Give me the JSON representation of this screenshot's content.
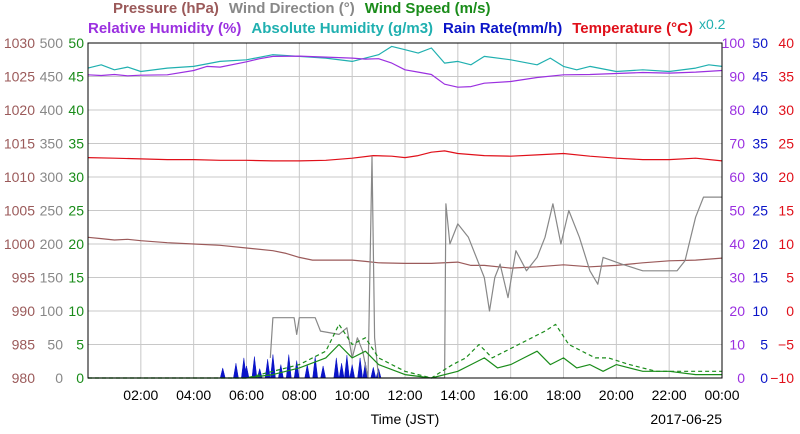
{
  "chart_data": {
    "type": "line",
    "legend_rows": [
      [
        {
          "key": "pressure",
          "text": "Pressure (hPa)",
          "color": "#9b5a5a"
        },
        {
          "key": "wind_dir",
          "text": "Wind Direction (°)",
          "color": "#888888"
        },
        {
          "key": "wind_speed",
          "text": "Wind Speed (m/s)",
          "color": "#1a8c1a"
        }
      ],
      [
        {
          "key": "rel_humidity",
          "text": "Relative Humidity (%)",
          "color": "#9b30e0"
        },
        {
          "key": "abs_humidity",
          "text": "Absolute Humidity (g/m3)",
          "color": "#20b0b0"
        },
        {
          "key": "rain_rate",
          "text": "Rain Rate(mm/h)",
          "color": "#0a14c8"
        },
        {
          "key": "temperature",
          "text": "Temperature (°C)",
          "color": "#e0101a"
        }
      ]
    ],
    "abs_humidity_scale": "x0.2",
    "xlabel": "Time (JST)",
    "date_label": "2017-06-25",
    "x_range_hours": [
      0,
      24
    ],
    "x_ticks": [
      "02:00",
      "04:00",
      "06:00",
      "08:00",
      "10:00",
      "12:00",
      "14:00",
      "16:00",
      "18:00",
      "20:00",
      "22:00",
      "00:00"
    ],
    "axes": {
      "pressure": {
        "min": 980,
        "max": 1030,
        "ticks": [
          "980",
          "985",
          "990",
          "995",
          "1000",
          "1005",
          "1010",
          "1015",
          "1020",
          "1025",
          "1030"
        ],
        "color": "#9b5a5a"
      },
      "wind_dir": {
        "min": 0,
        "max": 500,
        "ticks": [
          "0",
          "50",
          "100",
          "150",
          "200",
          "250",
          "300",
          "350",
          "400",
          "450",
          "500"
        ],
        "color": "#888888"
      },
      "wind_speed": {
        "min": 0,
        "max": 50,
        "ticks": [
          "0",
          "5",
          "10",
          "15",
          "20",
          "25",
          "30",
          "35",
          "40",
          "45",
          "50"
        ],
        "color": "#1a8c1a"
      },
      "rel_humidity": {
        "min": 0,
        "max": 100,
        "ticks": [
          "0",
          "10",
          "20",
          "30",
          "40",
          "50",
          "60",
          "70",
          "80",
          "90",
          "100"
        ],
        "color": "#9b30e0"
      },
      "rain_rate": {
        "min": 0,
        "max": 50,
        "ticks": [
          "0",
          "5",
          "10",
          "15",
          "20",
          "25",
          "30",
          "35",
          "40",
          "45",
          "50"
        ],
        "color": "#0a14c8"
      },
      "temperature": {
        "min": -10,
        "max": 40,
        "ticks": [
          "−10",
          "−5",
          "0",
          "5",
          "10",
          "15",
          "20",
          "25",
          "30",
          "35",
          "40"
        ],
        "color": "#e0101a"
      }
    },
    "grid": true,
    "series": [
      {
        "key": "pressure",
        "axis": "pressure",
        "color": "#9b5a5a",
        "points": [
          [
            0,
            1001
          ],
          [
            0.5,
            1000.8
          ],
          [
            1,
            1000.6
          ],
          [
            1.5,
            1000.7
          ],
          [
            2,
            1000.5
          ],
          [
            3,
            1000.2
          ],
          [
            4,
            1000
          ],
          [
            5,
            999.8
          ],
          [
            6,
            999.4
          ],
          [
            7,
            999
          ],
          [
            7.5,
            998.6
          ],
          [
            8,
            998
          ],
          [
            8.5,
            997.6
          ],
          [
            9,
            997.6
          ],
          [
            10,
            997.6
          ],
          [
            10.5,
            997.4
          ],
          [
            11,
            997.2
          ],
          [
            12,
            997.1
          ],
          [
            13,
            997.1
          ],
          [
            14,
            997.3
          ],
          [
            14.5,
            996.8
          ],
          [
            15,
            996.8
          ],
          [
            16,
            996.4
          ],
          [
            17,
            996.6
          ],
          [
            18,
            996.9
          ],
          [
            19,
            996.6
          ],
          [
            20,
            996.8
          ],
          [
            21,
            997.2
          ],
          [
            22,
            997.5
          ],
          [
            23,
            997.6
          ],
          [
            24,
            997.9
          ]
        ]
      },
      {
        "key": "temperature",
        "axis": "temperature",
        "color": "#e0101a",
        "points": [
          [
            0,
            22.9
          ],
          [
            1,
            22.8
          ],
          [
            2,
            22.7
          ],
          [
            3,
            22.6
          ],
          [
            4,
            22.6
          ],
          [
            5,
            22.5
          ],
          [
            6,
            22.5
          ],
          [
            7,
            22.4
          ],
          [
            8,
            22.4
          ],
          [
            9,
            22.5
          ],
          [
            10,
            22.8
          ],
          [
            10.8,
            23.2
          ],
          [
            11.5,
            23.1
          ],
          [
            12,
            22.9
          ],
          [
            12.5,
            23.2
          ],
          [
            13,
            23.7
          ],
          [
            13.5,
            23.9
          ],
          [
            14,
            23.5
          ],
          [
            15,
            23.2
          ],
          [
            16,
            23.1
          ],
          [
            17,
            23.3
          ],
          [
            18,
            23.5
          ],
          [
            19,
            23.1
          ],
          [
            20,
            22.8
          ],
          [
            21,
            22.6
          ],
          [
            22,
            22.6
          ],
          [
            23,
            22.8
          ],
          [
            24,
            22.4
          ]
        ]
      },
      {
        "key": "abs_humidity",
        "axis": "rel_humidity",
        "color": "#20b0b0",
        "points": [
          [
            0,
            92.5
          ],
          [
            0.5,
            93.5
          ],
          [
            1,
            92
          ],
          [
            1.5,
            92.8
          ],
          [
            2,
            91.5
          ],
          [
            3,
            92.5
          ],
          [
            4,
            93
          ],
          [
            5,
            94.5
          ],
          [
            6,
            95
          ],
          [
            7,
            96.5
          ],
          [
            8,
            96
          ],
          [
            9,
            95.5
          ],
          [
            10,
            94.5
          ],
          [
            11,
            96.5
          ],
          [
            11.5,
            99
          ],
          [
            12,
            98
          ],
          [
            12.5,
            97
          ],
          [
            13,
            98.5
          ],
          [
            13.5,
            94
          ],
          [
            14,
            94.5
          ],
          [
            14.5,
            93.5
          ],
          [
            15,
            96
          ],
          [
            16,
            95
          ],
          [
            17,
            93.5
          ],
          [
            17.5,
            95.5
          ],
          [
            18,
            93
          ],
          [
            18.5,
            92
          ],
          [
            19,
            93
          ],
          [
            20,
            91.5
          ],
          [
            21,
            92
          ],
          [
            22,
            91.5
          ],
          [
            23,
            92.5
          ],
          [
            23.5,
            93.5
          ],
          [
            24,
            93
          ]
        ]
      },
      {
        "key": "rel_humidity",
        "axis": "rel_humidity",
        "color": "#9b30e0",
        "points": [
          [
            0,
            90.5
          ],
          [
            0.5,
            90.3
          ],
          [
            1,
            90.6
          ],
          [
            1.5,
            90.2
          ],
          [
            2,
            90.4
          ],
          [
            3,
            90.5
          ],
          [
            4,
            91.8
          ],
          [
            4.5,
            93
          ],
          [
            5,
            92.8
          ],
          [
            6,
            94.4
          ],
          [
            6.5,
            95.3
          ],
          [
            7,
            96
          ],
          [
            8,
            96.1
          ],
          [
            9,
            95.8
          ],
          [
            10,
            95.5
          ],
          [
            10.5,
            95.2
          ],
          [
            11,
            95.3
          ],
          [
            11.5,
            94
          ],
          [
            12,
            92
          ],
          [
            12.5,
            91.3
          ],
          [
            13,
            90.6
          ],
          [
            13.5,
            87.7
          ],
          [
            14,
            86.8
          ],
          [
            14.5,
            87
          ],
          [
            15,
            88
          ],
          [
            16,
            88.5
          ],
          [
            17,
            89.7
          ],
          [
            18,
            90.5
          ],
          [
            19,
            90.6
          ],
          [
            20,
            90.9
          ],
          [
            21,
            91.2
          ],
          [
            22,
            91
          ],
          [
            23,
            91.3
          ],
          [
            24,
            91.8
          ]
        ]
      },
      {
        "key": "wind_dir",
        "axis": "wind_dir",
        "color": "#888888",
        "points": [
          [
            6.9,
            30
          ],
          [
            7.0,
            90
          ],
          [
            7.8,
            90
          ],
          [
            7.9,
            65
          ],
          [
            8.0,
            90
          ],
          [
            8.6,
            90
          ],
          [
            8.8,
            70
          ],
          [
            9.5,
            65
          ],
          [
            9.8,
            75
          ],
          [
            10.0,
            30
          ],
          [
            10.2,
            60
          ],
          [
            10.4,
            40
          ],
          [
            10.6,
            0
          ],
          [
            10.75,
            330
          ],
          [
            10.85,
            60
          ],
          [
            11.0,
            0
          ],
          [
            11.3,
            0
          ],
          [
            12.0,
            0
          ],
          [
            12.5,
            0
          ],
          [
            13.5,
            0
          ],
          [
            13.55,
            260
          ],
          [
            13.7,
            200
          ],
          [
            14.0,
            230
          ],
          [
            14.4,
            210
          ],
          [
            15.0,
            150
          ],
          [
            15.2,
            100
          ],
          [
            15.4,
            150
          ],
          [
            15.6,
            170
          ],
          [
            15.9,
            120
          ],
          [
            16.2,
            190
          ],
          [
            16.6,
            160
          ],
          [
            17.0,
            180
          ],
          [
            17.3,
            210
          ],
          [
            17.6,
            260
          ],
          [
            17.9,
            200
          ],
          [
            18.2,
            250
          ],
          [
            18.6,
            210
          ],
          [
            19.0,
            160
          ],
          [
            19.3,
            140
          ],
          [
            19.5,
            180
          ],
          [
            20.2,
            170
          ],
          [
            21.0,
            160
          ],
          [
            21.8,
            160
          ],
          [
            22.3,
            160
          ],
          [
            22.6,
            175
          ],
          [
            23.0,
            240
          ],
          [
            23.3,
            270
          ],
          [
            24.0,
            270
          ]
        ]
      },
      {
        "key": "wind_speed",
        "axis": "wind_speed",
        "color": "#1a8c1a",
        "points": [
          [
            0,
            0
          ],
          [
            6,
            0
          ],
          [
            7,
            0.5
          ],
          [
            8,
            1.5
          ],
          [
            9,
            3
          ],
          [
            9.5,
            5
          ],
          [
            10,
            3
          ],
          [
            10.5,
            4
          ],
          [
            11,
            2
          ],
          [
            12,
            0.5
          ],
          [
            13,
            0
          ],
          [
            14,
            1
          ],
          [
            14.5,
            2
          ],
          [
            15,
            3
          ],
          [
            15.5,
            1.5
          ],
          [
            16,
            2
          ],
          [
            16.5,
            3
          ],
          [
            17,
            4
          ],
          [
            17.5,
            2
          ],
          [
            18,
            3
          ],
          [
            18.5,
            1.5
          ],
          [
            19,
            2
          ],
          [
            19.5,
            1
          ],
          [
            20,
            2
          ],
          [
            21,
            1
          ],
          [
            22,
            1
          ],
          [
            23,
            0.5
          ],
          [
            24,
            0.5
          ]
        ]
      },
      {
        "key": "wind_gust",
        "axis": "wind_speed",
        "color": "#1a8c1a",
        "dash": true,
        "points": [
          [
            0,
            0
          ],
          [
            6,
            0
          ],
          [
            7,
            1
          ],
          [
            8,
            2
          ],
          [
            9,
            4
          ],
          [
            9.5,
            8
          ],
          [
            10,
            5
          ],
          [
            10.5,
            6
          ],
          [
            11,
            3
          ],
          [
            12,
            1
          ],
          [
            13,
            0
          ],
          [
            13.8,
            2
          ],
          [
            14.3,
            3
          ],
          [
            14.8,
            5
          ],
          [
            15.3,
            3
          ],
          [
            15.8,
            4
          ],
          [
            16.3,
            5
          ],
          [
            16.8,
            6
          ],
          [
            17.3,
            7
          ],
          [
            17.7,
            8
          ],
          [
            18.2,
            5
          ],
          [
            18.7,
            4
          ],
          [
            19.2,
            3
          ],
          [
            19.7,
            3
          ],
          [
            20.5,
            2
          ],
          [
            21.5,
            1
          ],
          [
            22.5,
            1
          ],
          [
            23.5,
            1
          ],
          [
            24,
            1
          ]
        ]
      }
    ],
    "rain_bars": [
      [
        5.1,
        1.5
      ],
      [
        5.6,
        2.2
      ],
      [
        5.9,
        3.0
      ],
      [
        6.0,
        1.8
      ],
      [
        6.3,
        3.2
      ],
      [
        6.5,
        1.4
      ],
      [
        6.8,
        2.8
      ],
      [
        7.0,
        3.5
      ],
      [
        7.3,
        2.0
      ],
      [
        7.6,
        3.5
      ],
      [
        7.9,
        2.6
      ],
      [
        8.3,
        2.0
      ],
      [
        8.6,
        3.2
      ],
      [
        8.9,
        1.8
      ],
      [
        9.4,
        3.0
      ],
      [
        9.6,
        2.2
      ],
      [
        9.8,
        3.4
      ],
      [
        10.0,
        2.0
      ],
      [
        10.3,
        3.0
      ],
      [
        10.5,
        2.4
      ],
      [
        10.8,
        1.6
      ],
      [
        11.0,
        1.4
      ]
    ]
  }
}
